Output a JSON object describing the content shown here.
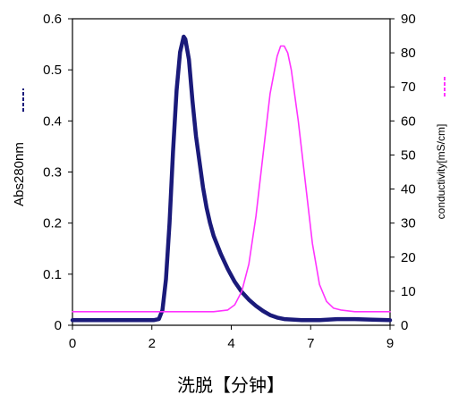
{
  "chart_data": {
    "type": "line",
    "xlabel": "洗脱【分钟】",
    "ylabel_left": "Abs280nm",
    "ylabel_right": "conductivity[mS/cm]",
    "x_ticks": [
      "0",
      "2",
      "4",
      "7",
      "9"
    ],
    "xlim": [
      0,
      9
    ],
    "ylim_left": [
      0,
      0.6
    ],
    "ylim_right": [
      0,
      90
    ],
    "y_left_ticks": [
      "0",
      "0.1",
      "0.2",
      "0.3",
      "0.4",
      "0.5",
      "0.6"
    ],
    "y_right_ticks": [
      "0",
      "10",
      "20",
      "30",
      "40",
      "50",
      "60",
      "70",
      "80",
      "90"
    ],
    "grid": false,
    "series": [
      {
        "axis": "left",
        "color": "#1a1a7a",
        "x": [
          0,
          2.3,
          2.45,
          2.55,
          2.65,
          2.75,
          2.85,
          2.95,
          3.05,
          3.15,
          3.2,
          3.3,
          3.4,
          3.5,
          3.6,
          3.7,
          3.8,
          3.9,
          4.0,
          4.2,
          4.4,
          4.6,
          4.8,
          5.0,
          5.2,
          5.4,
          5.6,
          5.8,
          6.0,
          6.5,
          7.0,
          7.5,
          8.0,
          8.5,
          9.0
        ],
        "y": [
          0.01,
          0.01,
          0.012,
          0.03,
          0.09,
          0.2,
          0.34,
          0.46,
          0.535,
          0.565,
          0.56,
          0.52,
          0.44,
          0.37,
          0.32,
          0.27,
          0.23,
          0.2,
          0.175,
          0.14,
          0.11,
          0.085,
          0.065,
          0.05,
          0.038,
          0.028,
          0.02,
          0.015,
          0.012,
          0.01,
          0.01,
          0.012,
          0.012,
          0.011,
          0.01
        ]
      },
      {
        "axis": "right",
        "color": "#ff33ff",
        "x": [
          0,
          4.0,
          4.4,
          4.6,
          4.8,
          5.0,
          5.2,
          5.4,
          5.6,
          5.8,
          5.9,
          6.0,
          6.1,
          6.2,
          6.4,
          6.6,
          6.8,
          7.0,
          7.2,
          7.4,
          7.6,
          8.0,
          8.5,
          9.0
        ],
        "y": [
          4,
          4,
          4.5,
          6,
          10,
          18,
          32,
          50,
          68,
          79,
          82,
          82,
          80,
          75,
          60,
          42,
          24,
          12,
          7,
          5,
          4.5,
          4,
          4,
          4
        ]
      }
    ]
  }
}
